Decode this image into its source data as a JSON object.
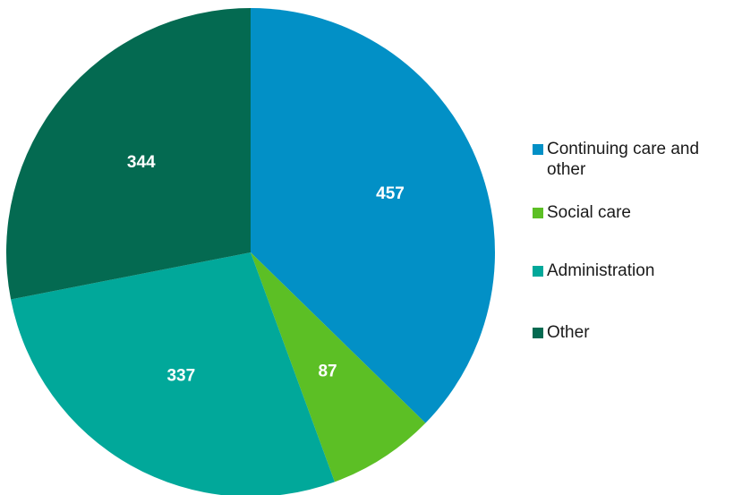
{
  "chart_data": {
    "type": "pie",
    "categories": [
      "Continuing care and other",
      "Social care",
      "Administration",
      "Other"
    ],
    "values": [
      457,
      87,
      337,
      344
    ],
    "colors": [
      "#0290c6",
      "#5cbf25",
      "#01a89a",
      "#046a51"
    ],
    "title": "",
    "legend": "right",
    "start_angle_deg": 0,
    "direction": "clockwise"
  }
}
